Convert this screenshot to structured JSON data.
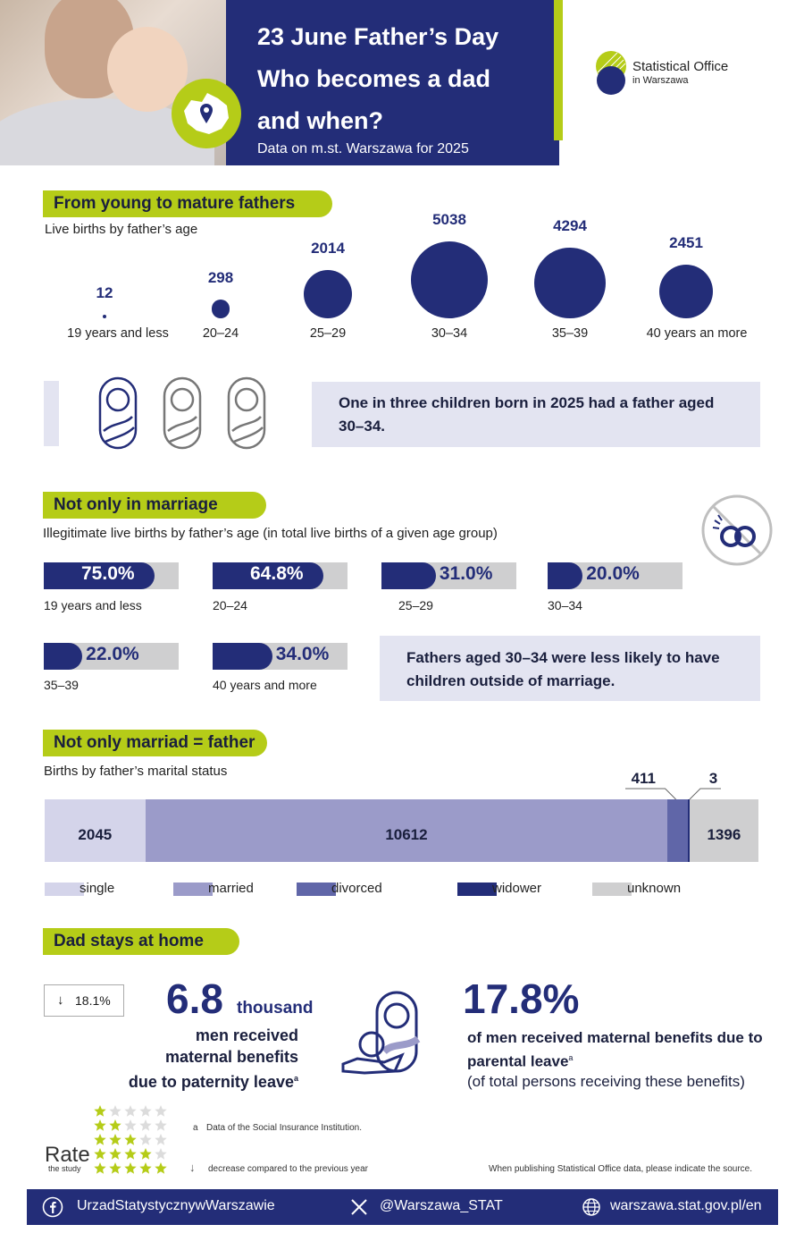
{
  "header": {
    "title_line1": "23 June Father’s Day",
    "title_line2": "Who becomes a dad",
    "title_line3": "and when?",
    "subtitle": "Data on m.st. Warszawa for 2025",
    "logo_line1": "Statistical Office",
    "logo_line2": "in Warszawa"
  },
  "section1": {
    "heading": "From young to mature fathers",
    "sublabel": "Live births by father’s age",
    "info": "One in three children born in 2025 had a father aged 30–34."
  },
  "section2": {
    "heading": "Not only in marriage",
    "sublabel": "Illegitimate live births by father’s age (in total live births of a given age group)",
    "info": "Fathers aged 30–34 were less likely to have children outside of marriage."
  },
  "section3": {
    "heading": "Not only marriad = father",
    "sublabel": "Births by father’s marital status"
  },
  "section4": {
    "heading": "Dad stays at home",
    "change": "18.1%",
    "big_value": "6.8",
    "big_unit": "thousand",
    "desc_line1": "men received",
    "desc_line2": "maternal benefits",
    "desc_line3": "due to paternity leave",
    "footnote_mark": "a",
    "pct_value": "17.8%",
    "pct_desc_line1": "of men received maternal benefits due to",
    "pct_desc_line2": "parental leave",
    "pct_desc_line3": "(of total persons receiving these benefits)"
  },
  "notes": {
    "rate_word": "Rate",
    "rate_sub": "the study",
    "footnote_a_mark": "a",
    "footnote_a": "Data of the Social Insurance Institution.",
    "arrow_note": "decrease compared to the previous year",
    "source_note": "When publishing Statistical Office data, please indicate the source."
  },
  "footer": {
    "facebook": "UrzadStatystycznywWarszawie",
    "x": "@Warszawa_STAT",
    "web": "warszawa.stat.gov.pl/en"
  },
  "colors": {
    "navy": "#232d78",
    "lime": "#b5cc18",
    "single": "#d4d4ea",
    "married": "#9b9bc9",
    "divorced": "#6066a8",
    "widower": "#232d78",
    "unknown": "#cfcfd0"
  },
  "chart_data": [
    {
      "type": "bubble",
      "categories": [
        "19 years and less",
        "20–24",
        "25–29",
        "30–34",
        "35–39",
        "40 years an more"
      ],
      "values": [
        12,
        298,
        2014,
        5038,
        4294,
        2451
      ],
      "value_labels": [
        "12",
        "298",
        "2014",
        "5038",
        "4294",
        "2451"
      ]
    },
    {
      "type": "bar",
      "categories": [
        "19 years and less",
        "20–24",
        "25–29",
        "30–34",
        "35–39",
        "40 years and more"
      ],
      "values": [
        75.0,
        64.8,
        31.0,
        20.0,
        22.0,
        34.0
      ],
      "value_labels": [
        "75.0%",
        "64.8%",
        "31.0%",
        "20.0%",
        "22.0%",
        "34.0%"
      ],
      "ylim": [
        0,
        100
      ]
    },
    {
      "type": "bar",
      "stacked": true,
      "categories": [
        "single",
        "married",
        "divorced",
        "widower",
        "unknown"
      ],
      "values": [
        2045,
        10612,
        411,
        3,
        1396
      ],
      "value_labels": [
        "2045",
        "10612",
        "411",
        "3",
        "1396"
      ],
      "legend": "bottom"
    }
  ]
}
